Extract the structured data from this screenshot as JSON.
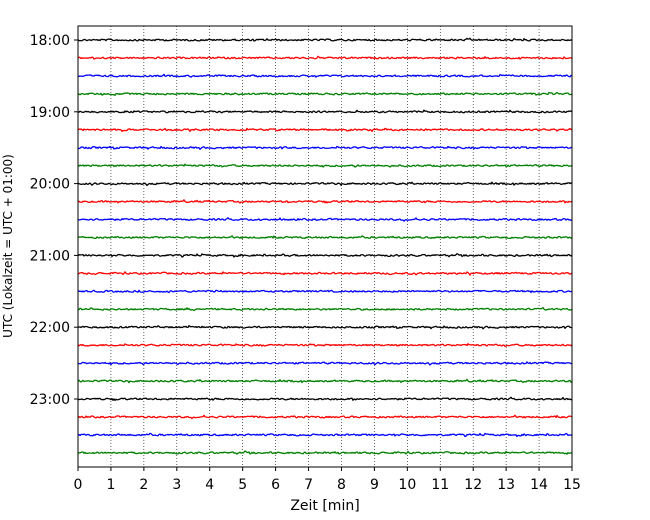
{
  "chart_data": {
    "type": "line",
    "title": "",
    "xlabel": "Zeit  [min]",
    "ylabel": "UTC (Lokalzeit = UTC + 01:00)",
    "xlim": [
      0,
      15
    ],
    "x_ticks": [
      0,
      1,
      2,
      3,
      4,
      5,
      6,
      7,
      8,
      9,
      10,
      11,
      12,
      13,
      14,
      15
    ],
    "y_ticks": [
      {
        "label": "18:00",
        "row": 0
      },
      {
        "label": "19:00",
        "row": 4
      },
      {
        "label": "20:00",
        "row": 8
      },
      {
        "label": "21:00",
        "row": 12
      },
      {
        "label": "22:00",
        "row": 16
      },
      {
        "label": "23:00",
        "row": 20
      }
    ],
    "start_time": "18:00",
    "row_interval_min": 15,
    "row_count": 24,
    "trace_colors": [
      "#000000",
      "#ff0000",
      "#0000ff",
      "#008000"
    ],
    "grid": "vertical-dotted",
    "series_kind": "seismogram-noise"
  }
}
